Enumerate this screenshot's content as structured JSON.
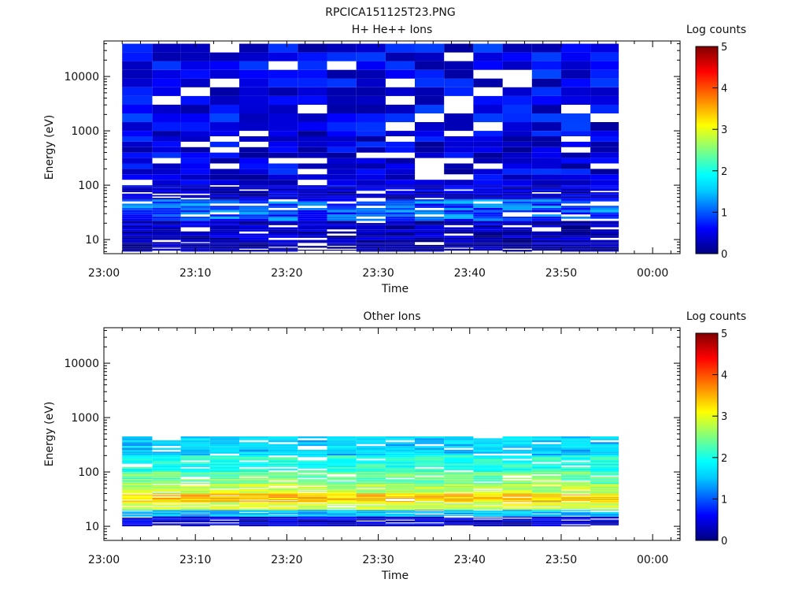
{
  "figure_title": "RPCICA151125T23.PNG",
  "colormap": [
    "#000080",
    "#0000ff",
    "#00c8ff",
    "#00ffff",
    "#7fff7f",
    "#ffff00",
    "#ff7f00",
    "#ff0000",
    "#800000"
  ],
  "chart_data": [
    {
      "type": "heatmap",
      "title": "H+ He++ Ions",
      "xlabel": "Time",
      "ylabel": "Energy (eV)",
      "x_ticks": [
        "23:00",
        "23:10",
        "23:20",
        "23:30",
        "23:40",
        "23:50",
        "00:00"
      ],
      "xlim_minutes": [
        0,
        63
      ],
      "y_scale": "log",
      "ylim": [
        5.5,
        45000
      ],
      "y_ticks": [
        {
          "value": 10,
          "label": "10"
        },
        {
          "value": 100,
          "label": "100"
        },
        {
          "value": 1000,
          "label": "1000"
        },
        {
          "value": 10000,
          "label": "10000"
        }
      ],
      "colorbar": {
        "label": "Log counts",
        "range": [
          0,
          5
        ],
        "ticks": [
          "0",
          "1",
          "2",
          "3",
          "4",
          "5"
        ]
      },
      "time_bins_minutes": [
        [
          2,
          5.3
        ],
        [
          5.3,
          8.4
        ],
        [
          8.4,
          11.6
        ],
        [
          11.6,
          14.8
        ],
        [
          14.8,
          18.0
        ],
        [
          18.0,
          21.2
        ],
        [
          21.2,
          24.4
        ],
        [
          24.4,
          27.6
        ],
        [
          27.6,
          30.8
        ],
        [
          30.8,
          34.0
        ],
        [
          34.0,
          37.2
        ],
        [
          37.2,
          40.4
        ],
        [
          40.4,
          43.6
        ],
        [
          43.6,
          46.8
        ],
        [
          46.8,
          50.0
        ],
        [
          50.0,
          53.2
        ],
        [
          53.2,
          56.3
        ]
      ],
      "energy_profile_log_counts": [
        {
          "energy_range": [
            40000,
            1000
          ],
          "level": 0.5
        },
        {
          "energy_range": [
            1000,
            100
          ],
          "level": 0.45
        },
        {
          "energy_range": [
            100,
            55
          ],
          "level": 0.4
        },
        {
          "energy_range": [
            55,
            22
          ],
          "level": 0.9
        },
        {
          "energy_range": [
            22,
            9
          ],
          "level": 0.3
        },
        {
          "energy_range": [
            9,
            6
          ],
          "level": 0.15
        }
      ]
    },
    {
      "type": "heatmap",
      "title": "Other Ions",
      "xlabel": "Time",
      "ylabel": "Energy (eV)",
      "x_ticks": [
        "23:00",
        "23:10",
        "23:20",
        "23:30",
        "23:40",
        "23:50",
        "00:00"
      ],
      "xlim_minutes": [
        0,
        63
      ],
      "y_scale": "log",
      "ylim": [
        5.5,
        45000
      ],
      "y_ticks": [
        {
          "value": 10,
          "label": "10"
        },
        {
          "value": 100,
          "label": "100"
        },
        {
          "value": 1000,
          "label": "1000"
        },
        {
          "value": 10000,
          "label": "10000"
        }
      ],
      "colorbar": {
        "label": "Log counts",
        "range": [
          0,
          5
        ],
        "ticks": [
          "0",
          "1",
          "2",
          "3",
          "4",
          "5"
        ]
      },
      "time_bins_minutes": [
        [
          2,
          5.3
        ],
        [
          5.3,
          8.4
        ],
        [
          8.4,
          11.6
        ],
        [
          11.6,
          14.8
        ],
        [
          14.8,
          18.0
        ],
        [
          18.0,
          21.2
        ],
        [
          21.2,
          24.4
        ],
        [
          24.4,
          27.6
        ],
        [
          27.6,
          30.8
        ],
        [
          30.8,
          34.0
        ],
        [
          34.0,
          37.2
        ],
        [
          37.2,
          40.4
        ],
        [
          40.4,
          43.6
        ],
        [
          43.6,
          46.8
        ],
        [
          46.8,
          50.0
        ],
        [
          50.0,
          53.2
        ],
        [
          53.2,
          56.3
        ]
      ],
      "energy_profile_log_counts": [
        {
          "energy_range": [
            450,
            200
          ],
          "level": 1.4
        },
        {
          "energy_range": [
            200,
            100
          ],
          "level": 2.0
        },
        {
          "energy_range": [
            100,
            60
          ],
          "level": 2.4
        },
        {
          "energy_range": [
            60,
            40
          ],
          "level": 2.8
        },
        {
          "energy_range": [
            40,
            28
          ],
          "level": 3.4
        },
        {
          "energy_range": [
            28,
            20
          ],
          "level": 2.9
        },
        {
          "energy_range": [
            20,
            15
          ],
          "level": 1.3
        },
        {
          "energy_range": [
            15,
            10
          ],
          "level": 0.4
        }
      ]
    }
  ]
}
